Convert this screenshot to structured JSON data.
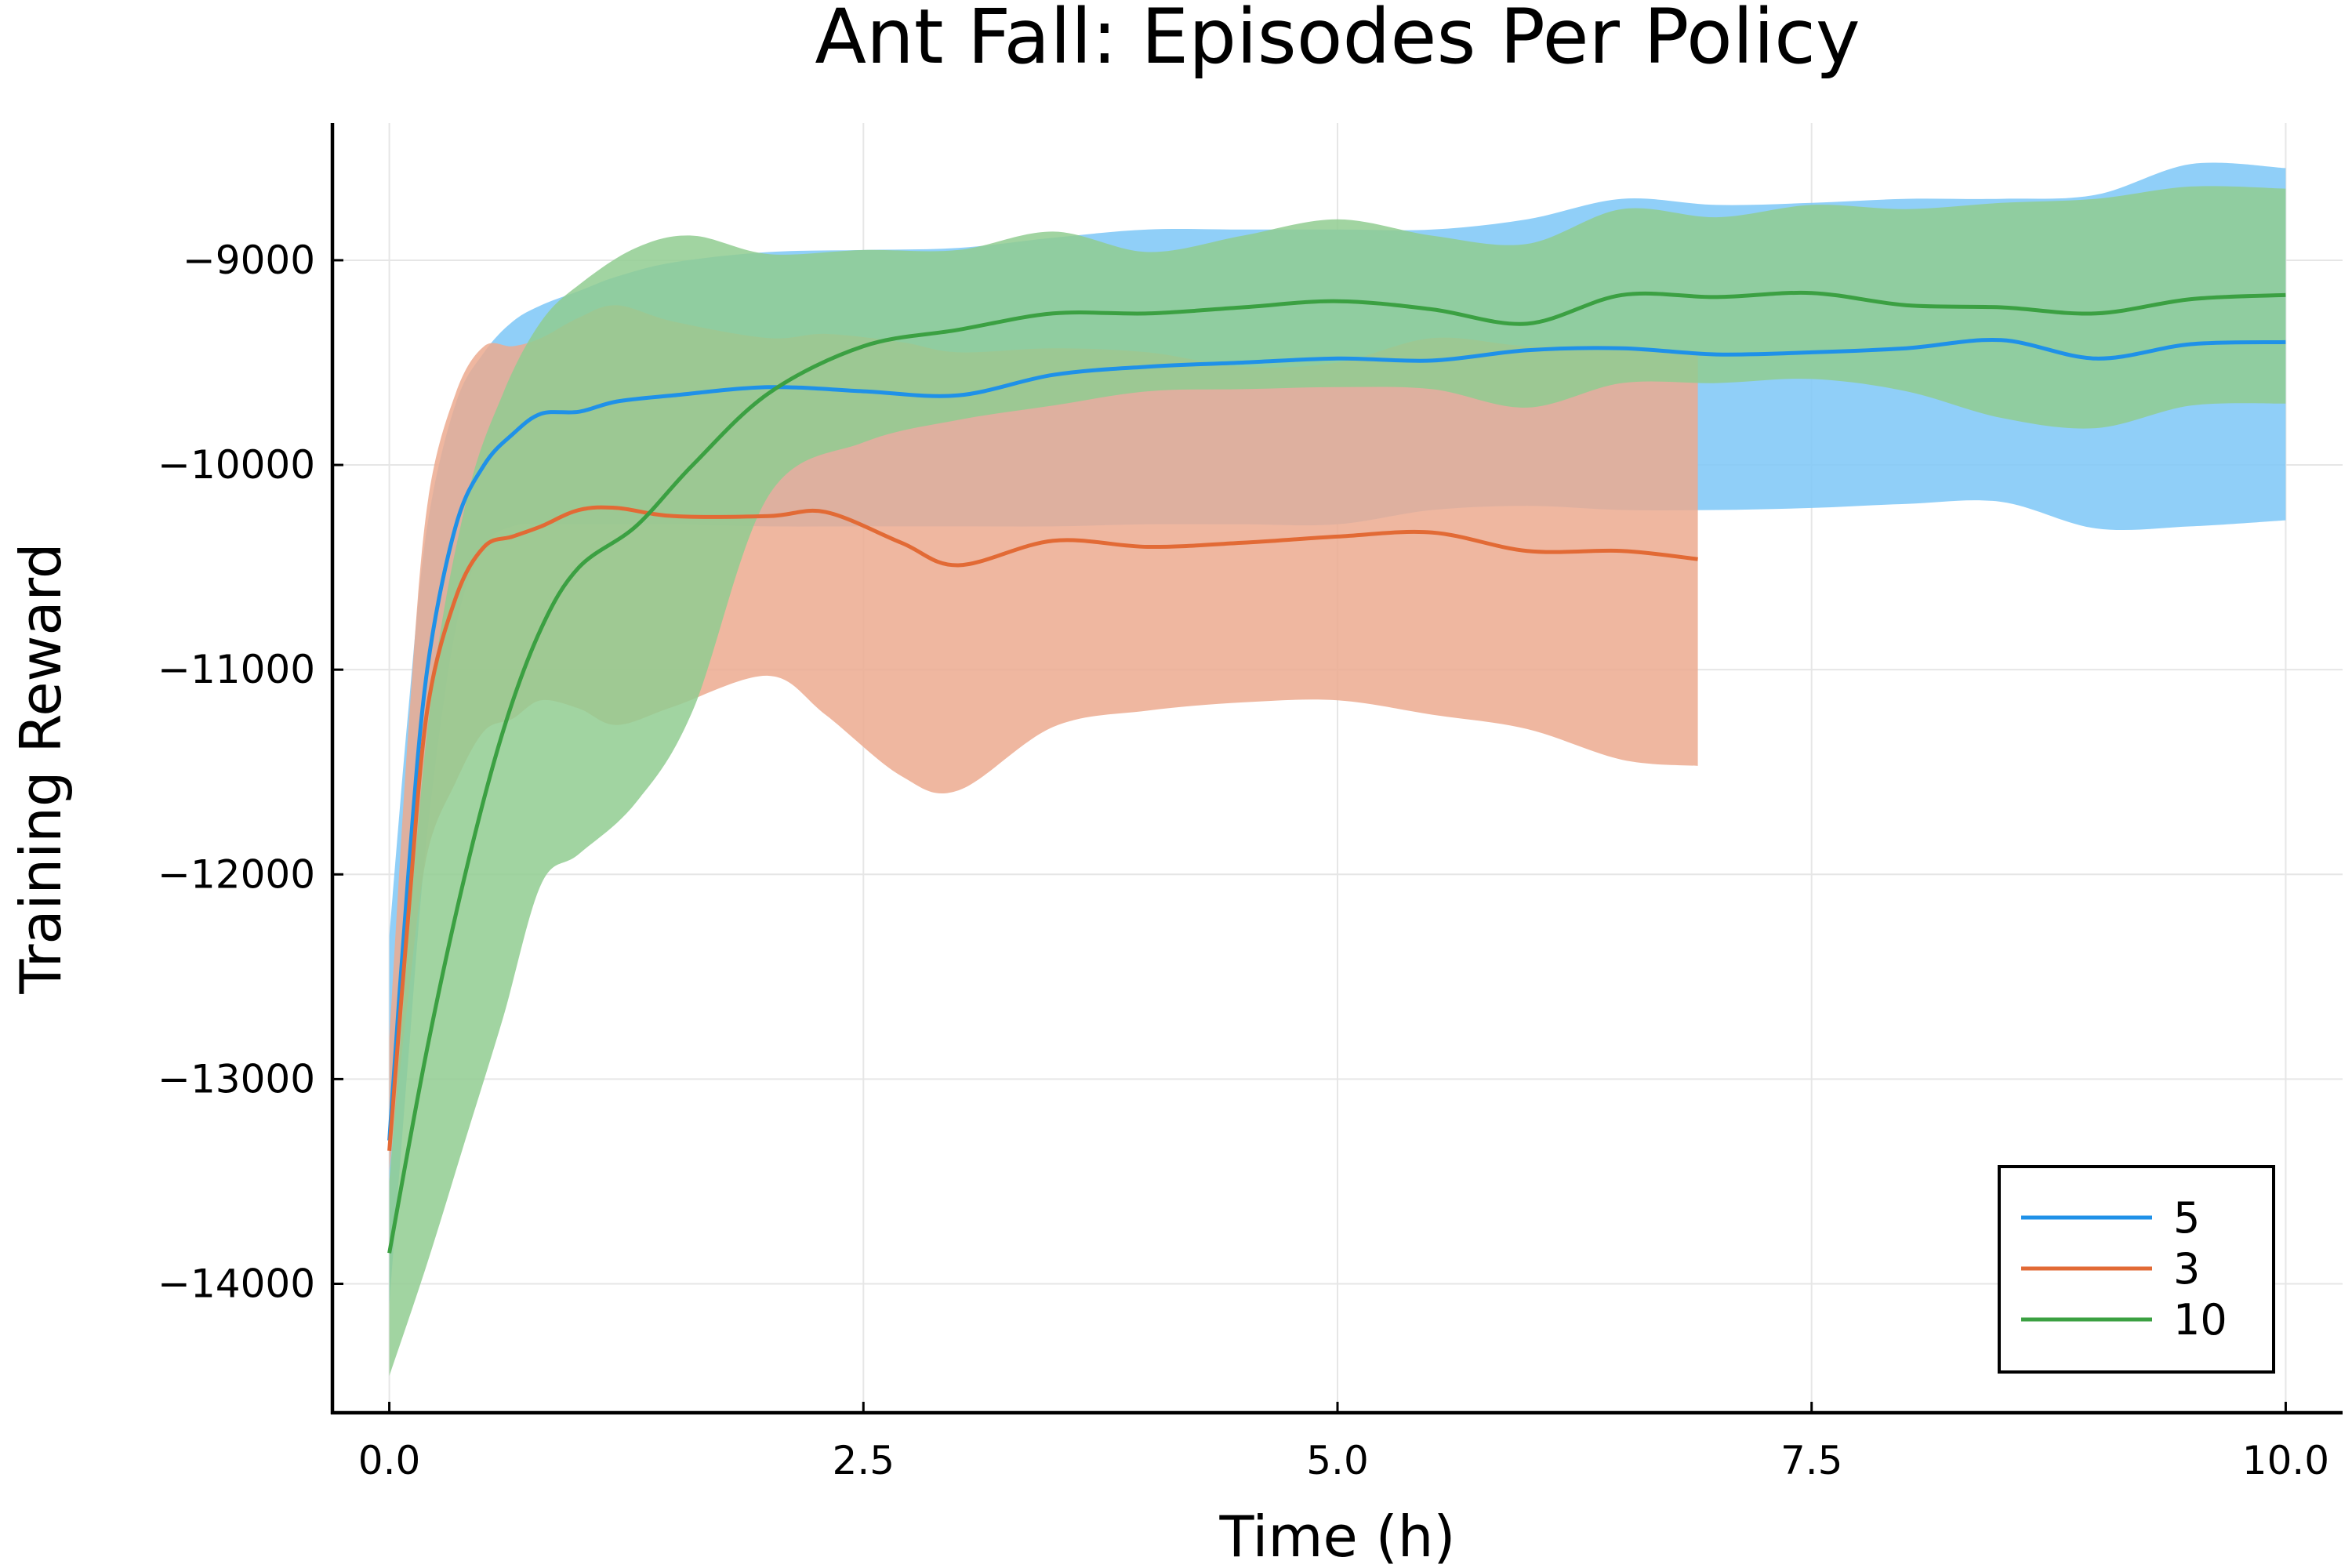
{
  "chart_data": {
    "type": "line",
    "title": "Ant Fall: Episodes Per Policy",
    "xlabel": "Time (h)",
    "ylabel": "Training Reward",
    "xlim": [
      -0.3,
      10.3
    ],
    "ylim": [
      -14630,
      -8330
    ],
    "xticks": [
      0,
      2.5,
      5,
      7.5,
      10
    ],
    "xtick_labels": [
      "0.0",
      "2.5",
      "5.0",
      "7.5",
      "10.0"
    ],
    "yticks": [
      -14000,
      -13000,
      -12000,
      -11000,
      -10000,
      -9000
    ],
    "ytick_labels": [
      "−14000",
      "−13000",
      "−12000",
      "−11000",
      "−10000",
      "−9000"
    ],
    "grid": true,
    "legend_position": "bottom-right",
    "series": [
      {
        "name": "5",
        "color": "#1f91e8",
        "band_color": "#7cc7f7",
        "x": [
          0,
          0.1,
          0.2,
          0.35,
          0.5,
          0.65,
          0.8,
          1.0,
          1.2,
          1.5,
          2.0,
          2.5,
          3.0,
          3.5,
          4.0,
          4.5,
          5.0,
          5.5,
          6.0,
          6.5,
          7.0,
          7.5,
          8.0,
          8.5,
          9.0,
          9.5,
          10.0
        ],
        "mean": [
          -13300,
          -12000,
          -11000,
          -10300,
          -10000,
          -9850,
          -9750,
          -9740,
          -9690,
          -9660,
          -9620,
          -9640,
          -9660,
          -9560,
          -9520,
          -9500,
          -9480,
          -9490,
          -9440,
          -9430,
          -9460,
          -9450,
          -9430,
          -9390,
          -9480,
          -9410,
          -9400
        ],
        "upper": [
          -12300,
          -11200,
          -10300,
          -9700,
          -9450,
          -9300,
          -9220,
          -9150,
          -9080,
          -9010,
          -8960,
          -8950,
          -8940,
          -8890,
          -8850,
          -8850,
          -8850,
          -8850,
          -8800,
          -8700,
          -8730,
          -8720,
          -8700,
          -8700,
          -8680,
          -8530,
          -8550
        ],
        "lower": [
          -14100,
          -12900,
          -11800,
          -10800,
          -10400,
          -10300,
          -10290,
          -10290,
          -10290,
          -10290,
          -10300,
          -10300,
          -10300,
          -10300,
          -10290,
          -10290,
          -10290,
          -10220,
          -10200,
          -10220,
          -10220,
          -10210,
          -10190,
          -10180,
          -10310,
          -10300,
          -10270
        ]
      },
      {
        "name": "3",
        "color": "#e26a35",
        "band_color": "#ecaa8f",
        "x": [
          0,
          0.1,
          0.2,
          0.35,
          0.5,
          0.65,
          0.8,
          1.0,
          1.2,
          1.5,
          2.0,
          2.3,
          2.7,
          3.0,
          3.5,
          4.0,
          4.5,
          5.0,
          5.5,
          6.0,
          6.5,
          6.9
        ],
        "mean": [
          -13350,
          -12200,
          -11200,
          -10650,
          -10400,
          -10350,
          -10300,
          -10220,
          -10210,
          -10250,
          -10250,
          -10230,
          -10380,
          -10490,
          -10370,
          -10400,
          -10380,
          -10350,
          -10330,
          -10420,
          -10420,
          -10460
        ],
        "upper": [
          -12800,
          -11300,
          -10200,
          -9650,
          -9420,
          -9420,
          -9380,
          -9280,
          -9220,
          -9300,
          -9380,
          -9360,
          -9400,
          -9450,
          -9430,
          -9450,
          -9520,
          -9500,
          -9380,
          -9420,
          -9420,
          -9460
        ],
        "lower": [
          -13450,
          -12600,
          -11900,
          -11550,
          -11300,
          -11240,
          -11150,
          -11190,
          -11270,
          -11180,
          -11030,
          -11220,
          -11520,
          -11590,
          -11280,
          -11200,
          -11160,
          -11150,
          -11220,
          -11290,
          -11440,
          -11470
        ]
      },
      {
        "name": "10",
        "color": "#3ba042",
        "band_color": "#90cc90",
        "x": [
          0,
          0.2,
          0.4,
          0.6,
          0.8,
          1.0,
          1.3,
          1.6,
          2.0,
          2.5,
          3.0,
          3.5,
          4.0,
          4.5,
          5.0,
          5.5,
          6.0,
          6.5,
          7.0,
          7.5,
          8.0,
          8.5,
          9.0,
          9.5,
          10.0
        ],
        "mean": [
          -13850,
          -12850,
          -12000,
          -11300,
          -10800,
          -10500,
          -10300,
          -10000,
          -9650,
          -9420,
          -9340,
          -9260,
          -9260,
          -9230,
          -9200,
          -9240,
          -9310,
          -9170,
          -9180,
          -9160,
          -9220,
          -9230,
          -9260,
          -9190,
          -9170
        ],
        "upper": [
          -13500,
          -11300,
          -10200,
          -9650,
          -9300,
          -9120,
          -8940,
          -8880,
          -8970,
          -8950,
          -8950,
          -8860,
          -8960,
          -8880,
          -8800,
          -8880,
          -8920,
          -8750,
          -8790,
          -8730,
          -8750,
          -8720,
          -8700,
          -8640,
          -8650
        ],
        "lower": [
          -14450,
          -13900,
          -13300,
          -12700,
          -12050,
          -11900,
          -11650,
          -11200,
          -10150,
          -9890,
          -9780,
          -9710,
          -9640,
          -9630,
          -9620,
          -9630,
          -9720,
          -9600,
          -9600,
          -9580,
          -9640,
          -9770,
          -9820,
          -9710,
          -9700
        ]
      }
    ]
  }
}
